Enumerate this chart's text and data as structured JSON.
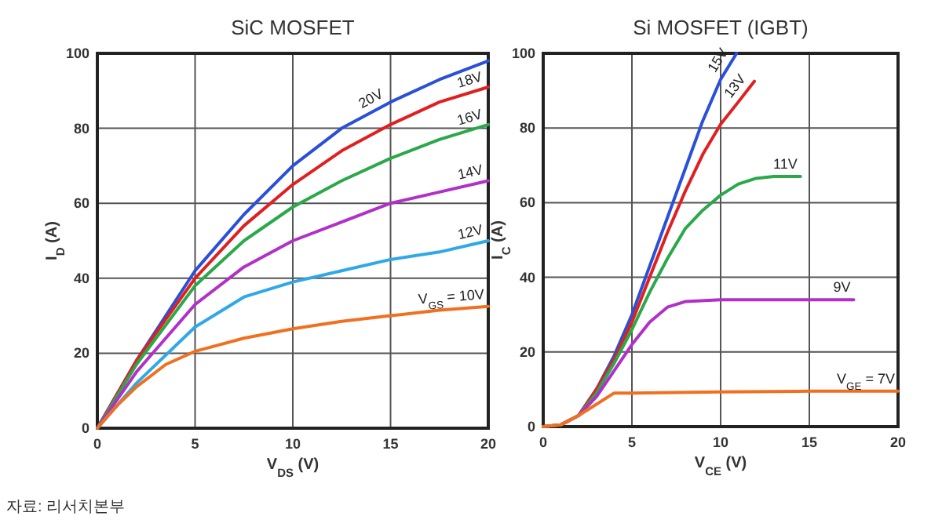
{
  "chart_data": [
    {
      "type": "line",
      "title": "SiC MOSFET",
      "xlabel": "V$_{DS}$ (V)",
      "ylabel": "I$_{D}$ (A)",
      "xlim": [
        0,
        20
      ],
      "ylim": [
        0,
        100
      ],
      "xticks": [
        0,
        5,
        10,
        15,
        20
      ],
      "yticks": [
        0,
        20,
        40,
        60,
        80,
        100
      ],
      "grid": true,
      "marker": "none",
      "line_style": "solid",
      "series": [
        {
          "name": "20V",
          "color": "#2a4fd8",
          "x": [
            0,
            1,
            2,
            3,
            5,
            7.5,
            10,
            12.5,
            15,
            17.5,
            20
          ],
          "values": [
            0,
            9,
            18,
            26,
            42,
            57,
            70,
            80,
            87,
            93,
            98
          ]
        },
        {
          "name": "18V",
          "color": "#e02020",
          "x": [
            0,
            2,
            5,
            7.5,
            10,
            12.5,
            15,
            17.5,
            20
          ],
          "values": [
            0,
            18,
            40,
            54,
            65,
            74,
            81,
            87,
            91
          ]
        },
        {
          "name": "16V",
          "color": "#2aa84a",
          "x": [
            0,
            2,
            5,
            7.5,
            10,
            12.5,
            15,
            17.5,
            20
          ],
          "values": [
            0,
            17,
            38,
            50,
            59,
            66,
            72,
            77,
            81
          ]
        },
        {
          "name": "14V",
          "color": "#b030c8",
          "x": [
            0,
            2,
            5,
            7.5,
            10,
            12.5,
            15,
            17.5,
            20
          ],
          "values": [
            0,
            15,
            33,
            43,
            50,
            55,
            60,
            63,
            66
          ]
        },
        {
          "name": "12V",
          "color": "#30a8e8",
          "x": [
            0,
            2,
            5,
            7.5,
            10,
            12.5,
            15,
            17.5,
            20
          ],
          "values": [
            0,
            12,
            27,
            35,
            39,
            42,
            45,
            47,
            50
          ]
        },
        {
          "name": "V$_{GS}$ = 10V",
          "color": "#f07020",
          "x": [
            0,
            1,
            2,
            3.5,
            5,
            7.5,
            10,
            12.5,
            15,
            17.5,
            20
          ],
          "values": [
            0,
            6,
            11,
            17,
            20.5,
            24,
            26.5,
            28.5,
            30,
            31.5,
            32.5
          ]
        }
      ],
      "annotations": [
        "자료: 리서치본부"
      ]
    },
    {
      "type": "line",
      "title": "Si MOSFET (IGBT)",
      "xlabel": "V$_{CE}$ (V)",
      "ylabel": "I$_{C}$ (A)",
      "xlim": [
        0,
        20
      ],
      "ylim": [
        0,
        100
      ],
      "xticks": [
        0,
        5,
        10,
        15,
        20
      ],
      "yticks": [
        0,
        20,
        40,
        60,
        80,
        100
      ],
      "grid": true,
      "marker": "none",
      "line_style": "solid",
      "series": [
        {
          "name": "15V",
          "color": "#2a4fd8",
          "x": [
            2,
            3,
            4,
            5,
            6,
            7,
            8,
            9,
            10,
            10.9
          ],
          "values": [
            3,
            10,
            19,
            30,
            43,
            56,
            69,
            82,
            93,
            100
          ]
        },
        {
          "name": "13V",
          "color": "#e02020",
          "x": [
            0,
            1,
            2,
            3,
            4,
            5,
            6,
            7,
            8,
            9,
            10,
            11,
            11.9
          ],
          "values": [
            0,
            0.5,
            3,
            10,
            18,
            28,
            40,
            52,
            63,
            73,
            81,
            87,
            92.5
          ]
        },
        {
          "name": "11V",
          "color": "#2aa84a",
          "x": [
            0,
            1,
            2,
            3,
            4,
            5,
            6,
            7,
            8,
            9,
            10,
            11,
            12,
            13,
            14.5
          ],
          "values": [
            0,
            0.5,
            3,
            9,
            17,
            26,
            36,
            45,
            53,
            58,
            62,
            65,
            66.5,
            67,
            67
          ]
        },
        {
          "name": "9V",
          "color": "#b030c8",
          "x": [
            0,
            1,
            2,
            3,
            4,
            5,
            6,
            7,
            8,
            10,
            15,
            17.5
          ],
          "values": [
            0,
            0.5,
            3,
            8,
            15,
            22,
            28,
            32,
            33.5,
            34,
            34,
            34
          ]
        },
        {
          "name": "V$_{GE}$ = 7V",
          "color": "#f07020",
          "x": [
            0,
            1,
            2,
            3,
            4,
            5,
            10,
            15,
            20
          ],
          "values": [
            0,
            0.5,
            3,
            6,
            9,
            9,
            9.3,
            9.5,
            9.5
          ]
        }
      ]
    }
  ]
}
